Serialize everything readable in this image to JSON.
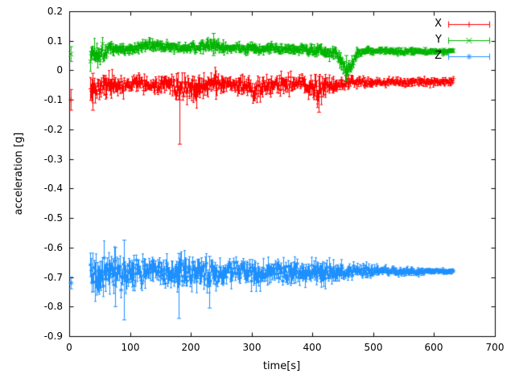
{
  "chart_data": {
    "type": "scatter",
    "title": "",
    "xlabel": "time[s]",
    "ylabel": "acceleration [g]",
    "xlim": [
      0,
      700
    ],
    "ylim": [
      -0.9,
      0.2
    ],
    "xticks": {
      "values": [
        0,
        100,
        200,
        300,
        400,
        500,
        600,
        700
      ],
      "labels": [
        "0",
        "100",
        "200",
        "300",
        "400",
        "500",
        "600",
        "700"
      ]
    },
    "yticks": {
      "values": [
        0.2,
        0.1,
        0,
        -0.1,
        -0.2,
        -0.3,
        -0.4,
        -0.5,
        -0.6,
        -0.7,
        -0.8,
        -0.9
      ],
      "labels": [
        "0.2",
        "0.1",
        "0",
        "-0.1",
        "-0.2",
        "-0.3",
        "-0.4",
        "-0.5",
        "-0.6",
        "-0.7",
        "-0.8",
        "-0.9"
      ]
    },
    "grid": false,
    "background": "#ffffff",
    "axis_color": "#000000",
    "legend": {
      "position": "top-right",
      "entries": [
        "X",
        "Y",
        "Z"
      ],
      "style": "errorbar-sample"
    },
    "sample_interval_s": 1.2,
    "series": [
      {
        "name": "X",
        "color": "#ff0000",
        "marker": "plus",
        "seed": 42,
        "approx_level": -0.05,
        "start": [
          3,
          -0.1,
          0.035
        ],
        "envelope": [
          [
            35,
            -0.065,
            0.055
          ],
          [
            50,
            -0.05,
            0.04
          ],
          [
            70,
            -0.055,
            0.045
          ],
          [
            90,
            -0.05,
            0.032
          ],
          [
            110,
            -0.045,
            0.03
          ],
          [
            130,
            -0.05,
            0.027
          ],
          [
            150,
            -0.05,
            0.03
          ],
          [
            170,
            -0.055,
            0.04
          ],
          [
            190,
            -0.06,
            0.045
          ],
          [
            210,
            -0.055,
            0.05
          ],
          [
            230,
            -0.05,
            0.04
          ],
          [
            250,
            -0.045,
            0.032
          ],
          [
            270,
            -0.05,
            0.03
          ],
          [
            290,
            -0.055,
            0.035
          ],
          [
            305,
            -0.065,
            0.042
          ],
          [
            320,
            -0.06,
            0.04
          ],
          [
            335,
            -0.05,
            0.035
          ],
          [
            355,
            -0.048,
            0.035
          ],
          [
            375,
            -0.045,
            0.03
          ],
          [
            395,
            -0.055,
            0.038
          ],
          [
            410,
            -0.068,
            0.048
          ],
          [
            425,
            -0.055,
            0.04
          ],
          [
            445,
            -0.048,
            0.025
          ],
          [
            465,
            -0.04,
            0.018
          ],
          [
            500,
            -0.04,
            0.016
          ],
          [
            560,
            -0.039,
            0.015
          ],
          [
            632,
            -0.038,
            0.015
          ]
        ],
        "spikes": [
          [
            38,
            -0.135,
            -0.01,
            -0.07
          ],
          [
            181,
            -0.25,
            -0.04,
            -0.1
          ],
          [
            410,
            -0.142,
            -0.02,
            -0.08
          ]
        ]
      },
      {
        "name": "Y",
        "color": "#00b400",
        "marker": "cross",
        "seed": 1337,
        "approx_level": 0.07,
        "start": [
          3,
          0.055,
          0.025
        ],
        "envelope": [
          [
            35,
            0.055,
            0.05
          ],
          [
            48,
            0.06,
            0.045
          ],
          [
            62,
            0.07,
            0.03
          ],
          [
            80,
            0.073,
            0.022
          ],
          [
            100,
            0.071,
            0.02
          ],
          [
            120,
            0.08,
            0.022
          ],
          [
            140,
            0.086,
            0.024
          ],
          [
            160,
            0.08,
            0.02
          ],
          [
            180,
            0.076,
            0.019
          ],
          [
            200,
            0.076,
            0.018
          ],
          [
            220,
            0.08,
            0.024
          ],
          [
            236,
            0.082,
            0.032
          ],
          [
            252,
            0.076,
            0.02
          ],
          [
            280,
            0.076,
            0.018
          ],
          [
            310,
            0.071,
            0.02
          ],
          [
            340,
            0.072,
            0.018
          ],
          [
            370,
            0.07,
            0.018
          ],
          [
            400,
            0.07,
            0.02
          ],
          [
            420,
            0.068,
            0.022
          ],
          [
            438,
            0.062,
            0.024
          ],
          [
            450,
            0.02,
            0.028
          ],
          [
            458,
            -0.004,
            0.024
          ],
          [
            466,
            0.03,
            0.028
          ],
          [
            474,
            0.062,
            0.02
          ],
          [
            495,
            0.065,
            0.013
          ],
          [
            560,
            0.065,
            0.012
          ],
          [
            632,
            0.066,
            0.012
          ]
        ],
        "spikes": [
          [
            237,
            0.05,
            0.125,
            0.09
          ],
          [
            455,
            -0.035,
            0.05,
            0.005
          ]
        ]
      },
      {
        "name": "Z",
        "color": "#1e90ff",
        "marker": "star",
        "seed": 2024,
        "approx_level": -0.68,
        "start": [
          3,
          -0.72,
          0.02
        ],
        "envelope": [
          [
            35,
            -0.69,
            0.075
          ],
          [
            50,
            -0.692,
            0.08
          ],
          [
            65,
            -0.68,
            0.07
          ],
          [
            80,
            -0.687,
            0.075
          ],
          [
            95,
            -0.69,
            0.068
          ],
          [
            110,
            -0.685,
            0.055
          ],
          [
            130,
            -0.68,
            0.047
          ],
          [
            150,
            -0.682,
            0.05
          ],
          [
            170,
            -0.686,
            0.055
          ],
          [
            185,
            -0.69,
            0.058
          ],
          [
            200,
            -0.681,
            0.05
          ],
          [
            215,
            -0.685,
            0.054
          ],
          [
            230,
            -0.69,
            0.058
          ],
          [
            245,
            -0.685,
            0.05
          ],
          [
            262,
            -0.68,
            0.045
          ],
          [
            282,
            -0.68,
            0.04
          ],
          [
            300,
            -0.686,
            0.045
          ],
          [
            316,
            -0.69,
            0.05
          ],
          [
            332,
            -0.68,
            0.04
          ],
          [
            350,
            -0.681,
            0.042
          ],
          [
            366,
            -0.686,
            0.046
          ],
          [
            382,
            -0.68,
            0.04
          ],
          [
            400,
            -0.681,
            0.042
          ],
          [
            416,
            -0.686,
            0.045
          ],
          [
            432,
            -0.68,
            0.035
          ],
          [
            452,
            -0.68,
            0.03
          ],
          [
            472,
            -0.678,
            0.027
          ],
          [
            500,
            -0.678,
            0.022
          ],
          [
            532,
            -0.678,
            0.018
          ],
          [
            562,
            -0.679,
            0.015
          ],
          [
            600,
            -0.68,
            0.012
          ],
          [
            632,
            -0.68,
            0.01
          ]
        ],
        "spikes": [
          [
            75,
            -0.8,
            -0.6,
            -0.69
          ],
          [
            90,
            -0.845,
            -0.575,
            -0.7
          ],
          [
            180,
            -0.84,
            -0.62,
            -0.7
          ],
          [
            230,
            -0.805,
            -0.63,
            -0.69
          ]
        ]
      }
    ]
  }
}
